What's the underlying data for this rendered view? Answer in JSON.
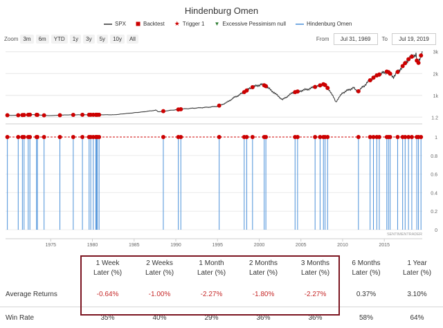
{
  "chart_data": {
    "type": "line",
    "title": "Hindenburg Omen",
    "legend": [
      "SPX",
      "Backtest",
      "Trigger 1",
      "Excessive Pessimism null",
      "Hindenburg Omen"
    ],
    "colors": {
      "spx": "#333333",
      "signal": "#cc0000",
      "omen": "#4a90d9",
      "trigger": "#cc0000",
      "pessimism": "#2e7d32"
    },
    "x_range": [
      1969.58,
      2019.55
    ],
    "x_ticks": [
      "1975",
      "1980",
      "1985",
      "1990",
      "1995",
      "2000",
      "2005",
      "2010",
      "2015"
    ],
    "x_tick_values": [
      1975,
      1980,
      1985,
      1990,
      1995,
      2000,
      2005,
      2010,
      2015
    ],
    "y_top_ticks": [
      "3k",
      "2k",
      "1k",
      "1.2"
    ],
    "y_top_tick_values": [
      3000,
      2000,
      1000,
      1.2
    ],
    "y_top_range": [
      -180,
      3150
    ],
    "y_bottom_ticks": [
      "1",
      "0.8",
      "0.6",
      "0.4",
      "0.2",
      "0"
    ],
    "y_bottom_tick_values": [
      1,
      0.8,
      0.6,
      0.4,
      0.2,
      0
    ],
    "spx_series": {
      "x": [
        1969.6,
        1970.4,
        1972.9,
        1974.8,
        1976.9,
        1980.0,
        1982.6,
        1984.0,
        1986.0,
        1987.6,
        1987.9,
        1990.0,
        1991.0,
        1994.0,
        1995.0,
        1996.0,
        1997.0,
        1998.0,
        1999.0,
        2000.2,
        2000.7,
        2001.7,
        2002.8,
        2004.0,
        2006.0,
        2007.8,
        2008.5,
        2009.2,
        2010.0,
        2011.3,
        2011.8,
        2013.0,
        2014.0,
        2015.4,
        2016.1,
        2017.0,
        2018.0,
        2018.8,
        2018.98,
        2019.55
      ],
      "y": [
        95,
        80,
        118,
        68,
        105,
        110,
        110,
        165,
        240,
        320,
        250,
        340,
        380,
        460,
        500,
        650,
        900,
        1100,
        1350,
        1500,
        1450,
        1150,
        800,
        1120,
        1300,
        1520,
        1200,
        700,
        1120,
        1350,
        1150,
        1600,
        1900,
        2100,
        1850,
        2250,
        2700,
        2900,
        2350,
        3000
      ]
    },
    "signal_dates": [
      1969.8,
      1971.1,
      1971.6,
      1971.8,
      1972.3,
      1972.5,
      1973.3,
      1973.4,
      1974.2,
      1976.1,
      1977.7,
      1978.8,
      1979.6,
      1979.8,
      1980.1,
      1980.4,
      1980.5,
      1980.6,
      1980.8,
      1988.5,
      1990.3,
      1990.6,
      1995.2,
      1998.2,
      1998.5,
      1999.2,
      2000.6,
      2000.8,
      2004.3,
      2004.6,
      2006.7,
      2007.3,
      2007.7,
      2007.9,
      2008.2,
      2011.9,
      2013.3,
      2013.7,
      2014.1,
      2014.4,
      2015.3,
      2015.5,
      2015.7,
      2016.6,
      2017.2,
      2017.5,
      2017.9,
      2018.3,
      2018.9,
      2019.1,
      2019.4
    ],
    "watermark": "SENTIMENTRADER"
  },
  "ui": {
    "zoom_label": "Zoom",
    "zoom_buttons": [
      "3m",
      "6m",
      "YTD",
      "1y",
      "3y",
      "5y",
      "10y",
      "All"
    ],
    "from_label": "From",
    "from_value": "Jul 31, 1969",
    "to_label": "To",
    "to_value": "Jul 19, 2019"
  },
  "table": {
    "periods": [
      {
        "l1": "1 Week",
        "l2": "Later (%)"
      },
      {
        "l1": "2 Weeks",
        "l2": "Later (%)"
      },
      {
        "l1": "1 Month",
        "l2": "Later (%)"
      },
      {
        "l1": "2 Months",
        "l2": "Later (%)"
      },
      {
        "l1": "3 Months",
        "l2": "Later (%)"
      },
      {
        "l1": "6 Months",
        "l2": "Later (%)"
      },
      {
        "l1": "1 Year",
        "l2": "Later (%)"
      }
    ],
    "avg_label": "Average Returns",
    "avg_values": [
      "-0.64%",
      "-1.00%",
      "-2.27%",
      "-1.80%",
      "-2.27%",
      "0.37%",
      "3.10%"
    ],
    "win_label": "Win Rate",
    "win_values": [
      "35%",
      "40%",
      "29%",
      "36%",
      "36%",
      "58%",
      "64%"
    ]
  }
}
